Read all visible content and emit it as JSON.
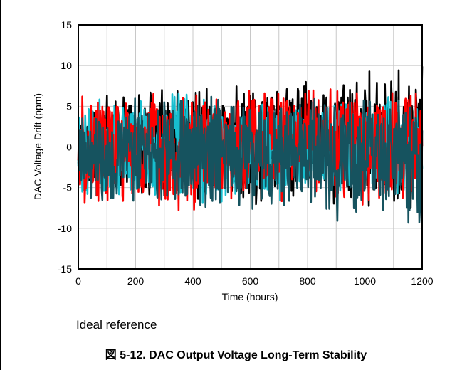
{
  "chart_data": {
    "type": "line",
    "title": "",
    "xlabel": "Time (hours)",
    "ylabel": "DAC Voltage Drift (ppm)",
    "xlim": [
      0,
      1200
    ],
    "ylim": [
      -15,
      15
    ],
    "x_ticks": [
      0,
      200,
      400,
      600,
      800,
      1000,
      1200
    ],
    "y_ticks": [
      15,
      10,
      5,
      0,
      -5,
      -10,
      -15
    ],
    "grid": true,
    "legend": "none",
    "series": [
      {
        "color": "#000000",
        "x_range": [
          0,
          1200
        ],
        "band": [
          [
            0,
            -6,
            6
          ],
          [
            400,
            -7,
            8
          ],
          [
            800,
            -8,
            9
          ],
          [
            1200,
            -9,
            10
          ]
        ]
      },
      {
        "color": "#17becf",
        "x_range": [
          0,
          1200
        ],
        "band": [
          [
            0,
            -7,
            7
          ],
          [
            400,
            -7,
            7
          ],
          [
            800,
            -7,
            7
          ],
          [
            1200,
            -6,
            7
          ]
        ]
      },
      {
        "color": "#ff0000",
        "x_range": [
          0,
          1200
        ],
        "band": [
          [
            0,
            -7,
            7
          ],
          [
            380,
            -9,
            7
          ],
          [
            800,
            -7,
            8
          ],
          [
            1200,
            -8,
            8
          ]
        ]
      },
      {
        "color": "#16535f",
        "x_range": [
          0,
          1200
        ],
        "band": [
          [
            0,
            -7,
            5
          ],
          [
            400,
            -8,
            7
          ],
          [
            800,
            -9,
            7
          ],
          [
            1200,
            -10,
            6
          ]
        ]
      }
    ]
  },
  "note": "Ideal reference",
  "caption": "図 5-12. DAC Output Voltage Long-Term Stability"
}
